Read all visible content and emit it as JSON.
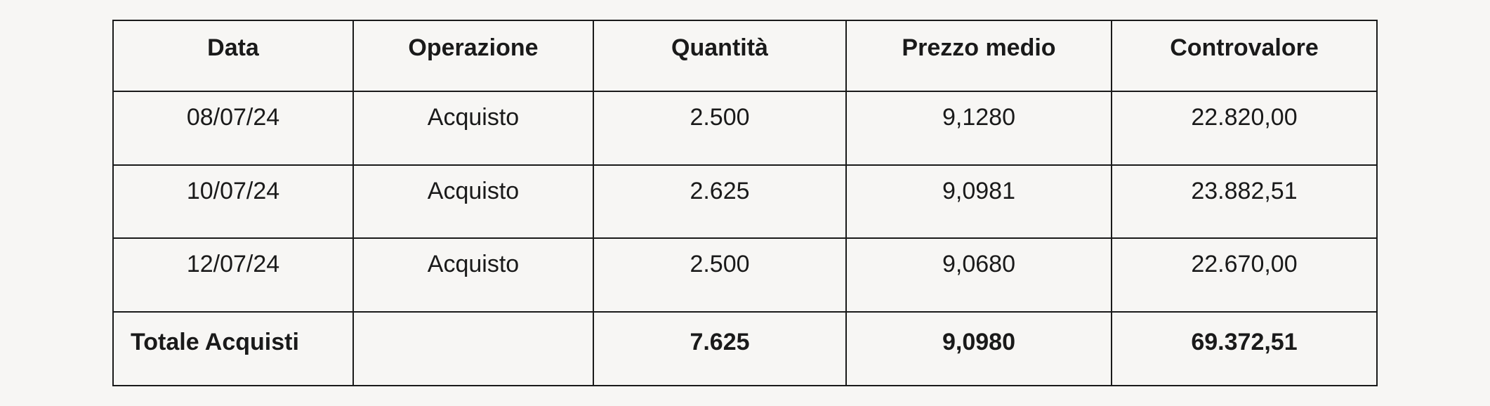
{
  "table": {
    "type": "table",
    "background_color": "#f7f6f4",
    "border_color": "#1a1a1a",
    "text_color": "#1a1a1a",
    "header_fontsize": 34,
    "body_fontsize": 34,
    "header_fontweight": 700,
    "body_fontweight": 400,
    "footer_fontweight": 700,
    "column_widths_pct": [
      19,
      19,
      20,
      21,
      21
    ],
    "columns": [
      "Data",
      "Operazione",
      "Quantità",
      "Prezzo medio",
      "Controvalore"
    ],
    "rows": [
      {
        "data": "08/07/24",
        "operazione": "Acquisto",
        "quantita": "2.500",
        "prezzo_medio": "9,1280",
        "controvalore": "22.820,00"
      },
      {
        "data": "10/07/24",
        "operazione": "Acquisto",
        "quantita": "2.625",
        "prezzo_medio": "9,0981",
        "controvalore": "23.882,51"
      },
      {
        "data": "12/07/24",
        "operazione": "Acquisto",
        "quantita": "2.500",
        "prezzo_medio": "9,0680",
        "controvalore": "22.670,00"
      }
    ],
    "footer": {
      "label": "Totale Acquisti",
      "operazione": "",
      "quantita": "7.625",
      "prezzo_medio": "9,0980",
      "controvalore": "69.372,51"
    }
  }
}
